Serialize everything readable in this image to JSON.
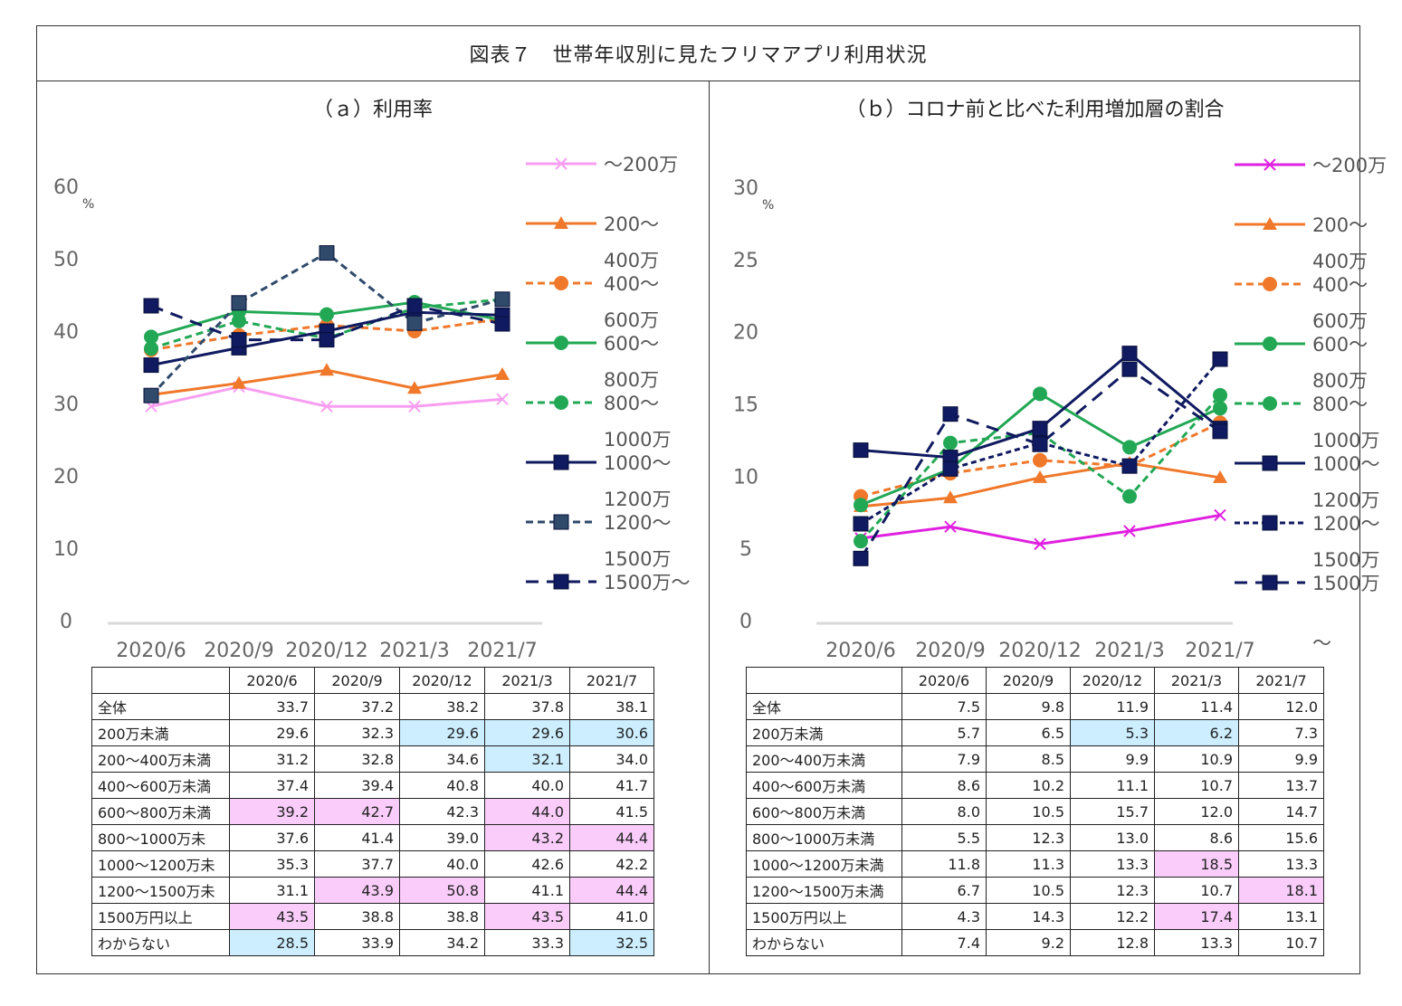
{
  "title": "図表７　世帯年収別に見たフリマアプリ利用状況",
  "colors": {
    "s200": "#f79ef0",
    "s200b": "#e020e0",
    "s200_400": "#f0782a",
    "s400_600": "#f0782a",
    "s600_800": "#22a855",
    "s800_1000": "#22a855",
    "s1000_1200": "#101a60",
    "s1200a": "#2f4a6a",
    "s1200b": "#101a60",
    "s1500": "#101a60",
    "pink": "#f9ccf9",
    "blue": "#cceeff"
  },
  "chart_data": [
    {
      "type": "line",
      "id": "a",
      "title": "（ａ）利用率",
      "ylabel": "%",
      "ylim": [
        0,
        60
      ],
      "yticks": [
        "0",
        "10",
        "20",
        "30",
        "40",
        "50",
        "60"
      ],
      "categories": [
        "2020/6",
        "2020/9",
        "2020/12",
        "2021/3",
        "2021/7"
      ],
      "legend": [
        {
          "line1": "",
          "line2": "～200万"
        },
        {
          "line1": "",
          "line2": "200～"
        },
        {
          "line1": "400万",
          "line2": "400～"
        },
        {
          "line1": "600万",
          "line2": "600～"
        },
        {
          "line1": "800万",
          "line2": "800～"
        },
        {
          "line1": "1000万",
          "line2": "1000～"
        },
        {
          "line1": "1200万",
          "line2": "1200～"
        },
        {
          "line1": "1500万",
          "line2": "1500万～"
        }
      ],
      "series": [
        {
          "name": "～200万",
          "values": [
            29.6,
            32.3,
            29.6,
            29.6,
            30.6
          ]
        },
        {
          "name": "200～400万",
          "values": [
            31.2,
            32.8,
            34.6,
            32.1,
            34.0
          ]
        },
        {
          "name": "400～600万",
          "values": [
            37.4,
            39.4,
            40.8,
            40.0,
            41.7
          ]
        },
        {
          "name": "600～800万",
          "values": [
            39.2,
            42.7,
            42.3,
            44.0,
            41.5
          ]
        },
        {
          "name": "800～1000万",
          "values": [
            37.6,
            41.4,
            39.0,
            43.2,
            44.4
          ]
        },
        {
          "name": "1000～1200万",
          "values": [
            35.3,
            37.7,
            40.0,
            42.6,
            42.2
          ]
        },
        {
          "name": "1200～1500万",
          "values": [
            31.1,
            43.9,
            50.8,
            41.1,
            44.4
          ]
        },
        {
          "name": "1500万～",
          "values": [
            43.5,
            38.8,
            38.8,
            43.5,
            41.0
          ]
        }
      ]
    },
    {
      "type": "line",
      "id": "b",
      "title": "（ｂ）コロナ前と比べた利用増加層の割合",
      "ylabel": "%",
      "ylim": [
        0,
        30
      ],
      "yticks": [
        "0",
        "5",
        "10",
        "15",
        "20",
        "25",
        "30"
      ],
      "categories": [
        "2020/6",
        "2020/9",
        "2020/12",
        "2021/3",
        "2021/7"
      ],
      "legend": [
        {
          "line1": "",
          "line2": "～200万"
        },
        {
          "line1": "",
          "line2": "200～"
        },
        {
          "line1": "400万",
          "line2": "400～"
        },
        {
          "line1": "600万",
          "line2": "600～"
        },
        {
          "line1": "800万",
          "line2": "800～"
        },
        {
          "line1": "1000万",
          "line2": "1000～"
        },
        {
          "line1": "1200万",
          "line2": "1200～"
        },
        {
          "line1": "1500万",
          "line2": "1500万"
        },
        {
          "line1": "",
          "line2": "～"
        }
      ],
      "series": [
        {
          "name": "～200万",
          "values": [
            5.7,
            6.5,
            5.3,
            6.2,
            7.3
          ]
        },
        {
          "name": "200～400万",
          "values": [
            7.9,
            8.5,
            9.9,
            10.9,
            9.9
          ]
        },
        {
          "name": "400～600万",
          "values": [
            8.6,
            10.2,
            11.1,
            10.7,
            13.7
          ]
        },
        {
          "name": "600～800万",
          "values": [
            8.0,
            10.5,
            15.7,
            12.0,
            14.7
          ]
        },
        {
          "name": "800～1000万",
          "values": [
            5.5,
            12.3,
            13.0,
            8.6,
            15.6
          ]
        },
        {
          "name": "1000～1200万",
          "values": [
            11.8,
            11.3,
            13.3,
            18.5,
            13.3
          ]
        },
        {
          "name": "1200～1500万",
          "values": [
            6.7,
            10.5,
            12.3,
            10.7,
            18.1
          ]
        },
        {
          "name": "1500万～",
          "values": [
            4.3,
            14.3,
            12.2,
            17.4,
            13.1
          ]
        }
      ]
    }
  ],
  "tables": [
    {
      "headers": [
        "",
        "2020/6",
        "2020/9",
        "2020/12",
        "2021/3",
        "2021/7"
      ],
      "rows": [
        {
          "label": "全体",
          "values": [
            "33.7",
            "37.2",
            "38.2",
            "37.8",
            "38.1"
          ],
          "hl": [
            "",
            "",
            "",
            "",
            ""
          ]
        },
        {
          "label": "200万未満",
          "values": [
            "29.6",
            "32.3",
            "29.6",
            "29.6",
            "30.6"
          ],
          "hl": [
            "",
            "",
            "blue",
            "blue",
            "blue"
          ]
        },
        {
          "label": "200～400万未満",
          "values": [
            "31.2",
            "32.8",
            "34.6",
            "32.1",
            "34.0"
          ],
          "hl": [
            "",
            "",
            "",
            "blue",
            ""
          ]
        },
        {
          "label": "400～600万未満",
          "values": [
            "37.4",
            "39.4",
            "40.8",
            "40.0",
            "41.7"
          ],
          "hl": [
            "",
            "",
            "",
            "",
            ""
          ]
        },
        {
          "label": "600～800万未満",
          "values": [
            "39.2",
            "42.7",
            "42.3",
            "44.0",
            "41.5"
          ],
          "hl": [
            "pink",
            "pink",
            "",
            "pink",
            ""
          ]
        },
        {
          "label": "800～1000万未",
          "values": [
            "37.6",
            "41.4",
            "39.0",
            "43.2",
            "44.4"
          ],
          "hl": [
            "",
            "",
            "",
            "pink",
            "pink"
          ]
        },
        {
          "label": "1000～1200万未",
          "values": [
            "35.3",
            "37.7",
            "40.0",
            "42.6",
            "42.2"
          ],
          "hl": [
            "",
            "",
            "",
            "",
            ""
          ]
        },
        {
          "label": "1200～1500万未",
          "values": [
            "31.1",
            "43.9",
            "50.8",
            "41.1",
            "44.4"
          ],
          "hl": [
            "",
            "pink",
            "pink",
            "",
            "pink"
          ]
        },
        {
          "label": "1500万円以上",
          "values": [
            "43.5",
            "38.8",
            "38.8",
            "43.5",
            "41.0"
          ],
          "hl": [
            "pink",
            "",
            "",
            "pink",
            ""
          ]
        },
        {
          "label": "わからない",
          "values": [
            "28.5",
            "33.9",
            "34.2",
            "33.3",
            "32.5"
          ],
          "hl": [
            "blue",
            "",
            "",
            "",
            "blue"
          ]
        }
      ]
    },
    {
      "headers": [
        "",
        "2020/6",
        "2020/9",
        "2020/12",
        "2021/3",
        "2021/7"
      ],
      "rows": [
        {
          "label": "全体",
          "values": [
            "7.5",
            "9.8",
            "11.9",
            "11.4",
            "12.0"
          ],
          "hl": [
            "",
            "",
            "",
            "",
            ""
          ]
        },
        {
          "label": "200万未満",
          "values": [
            "5.7",
            "6.5",
            "5.3",
            "6.2",
            "7.3"
          ],
          "hl": [
            "",
            "",
            "blue",
            "blue",
            ""
          ]
        },
        {
          "label": "200～400万未満",
          "values": [
            "7.9",
            "8.5",
            "9.9",
            "10.9",
            "9.9"
          ],
          "hl": [
            "",
            "",
            "",
            "",
            ""
          ]
        },
        {
          "label": "400～600万未満",
          "values": [
            "8.6",
            "10.2",
            "11.1",
            "10.7",
            "13.7"
          ],
          "hl": [
            "",
            "",
            "",
            "",
            ""
          ]
        },
        {
          "label": "600～800万未満",
          "values": [
            "8.0",
            "10.5",
            "15.7",
            "12.0",
            "14.7"
          ],
          "hl": [
            "",
            "",
            "",
            "",
            ""
          ]
        },
        {
          "label": "800～1000万未満",
          "values": [
            "5.5",
            "12.3",
            "13.0",
            "8.6",
            "15.6"
          ],
          "hl": [
            "",
            "",
            "",
            "",
            ""
          ]
        },
        {
          "label": "1000～1200万未満",
          "values": [
            "11.8",
            "11.3",
            "13.3",
            "18.5",
            "13.3"
          ],
          "hl": [
            "",
            "",
            "",
            "pink",
            ""
          ]
        },
        {
          "label": "1200～1500万未満",
          "values": [
            "6.7",
            "10.5",
            "12.3",
            "10.7",
            "18.1"
          ],
          "hl": [
            "",
            "",
            "",
            "",
            "pink"
          ]
        },
        {
          "label": "1500万円以上",
          "values": [
            "4.3",
            "14.3",
            "12.2",
            "17.4",
            "13.1"
          ],
          "hl": [
            "",
            "",
            "",
            "pink",
            ""
          ]
        },
        {
          "label": "わからない",
          "values": [
            "7.4",
            "9.2",
            "12.8",
            "13.3",
            "10.7"
          ],
          "hl": [
            "",
            "",
            "",
            "",
            ""
          ]
        }
      ]
    }
  ]
}
